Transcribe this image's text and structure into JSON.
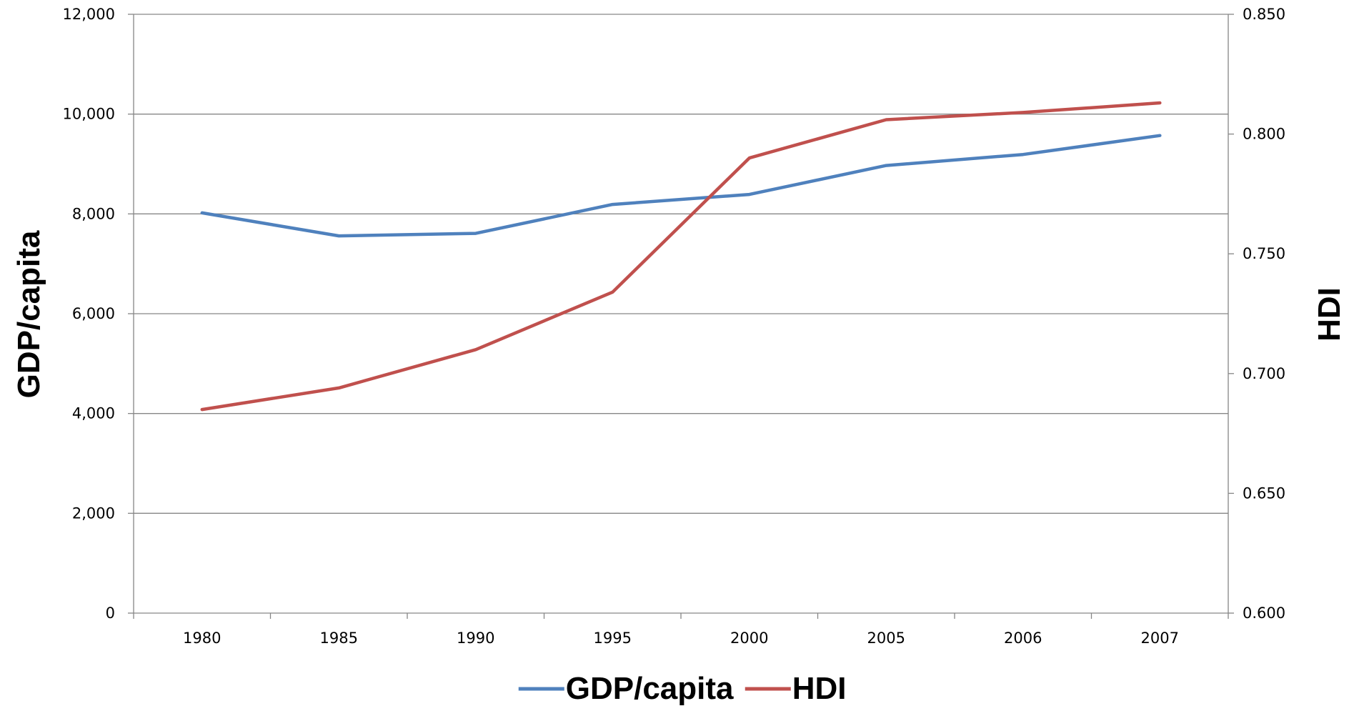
{
  "chart_data": {
    "type": "line",
    "categories": [
      "1980",
      "1985",
      "1990",
      "1995",
      "2000",
      "2005",
      "2006",
      "2007"
    ],
    "series": [
      {
        "name": "GDP/capita",
        "axis": "left",
        "color": "#4f81bd",
        "values": [
          8020,
          7560,
          7610,
          8190,
          8390,
          8970,
          9190,
          9570
        ]
      },
      {
        "name": "HDI",
        "axis": "right",
        "color": "#c0504d",
        "values": [
          0.685,
          0.694,
          0.71,
          0.734,
          0.79,
          0.806,
          0.809,
          0.813
        ]
      }
    ],
    "y_left": {
      "label": "GDP/capita",
      "min": 0,
      "max": 12000,
      "ticks": [
        {
          "value": 0,
          "label": "0"
        },
        {
          "value": 2000,
          "label": "2,000"
        },
        {
          "value": 4000,
          "label": "4,000"
        },
        {
          "value": 6000,
          "label": "6,000"
        },
        {
          "value": 8000,
          "label": "8,000"
        },
        {
          "value": 10000,
          "label": "10,000"
        },
        {
          "value": 12000,
          "label": "12,000"
        }
      ]
    },
    "y_right": {
      "label": "HDI",
      "min": 0.6,
      "max": 0.85,
      "ticks": [
        {
          "value": 0.6,
          "label": "0.600"
        },
        {
          "value": 0.65,
          "label": "0.650"
        },
        {
          "value": 0.7,
          "label": "0.700"
        },
        {
          "value": 0.75,
          "label": "0.750"
        },
        {
          "value": 0.8,
          "label": "0.800"
        },
        {
          "value": 0.85,
          "label": "0.850"
        }
      ]
    },
    "xlabel": "",
    "grid": true,
    "legend": {
      "placement": "bottom",
      "entries": [
        "GDP/capita",
        "HDI"
      ]
    }
  }
}
